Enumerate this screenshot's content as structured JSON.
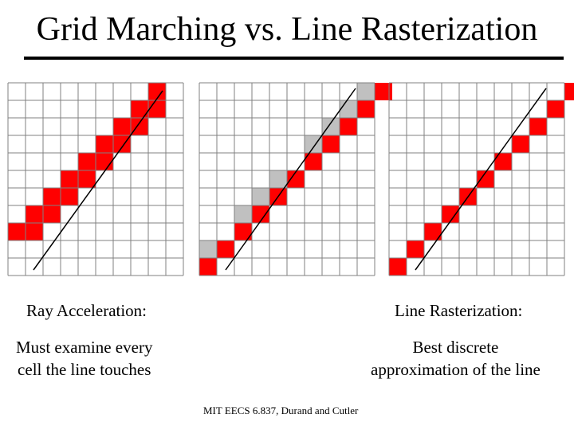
{
  "title": "Grid Marching vs. Line Rasterization",
  "panels": [
    {
      "name": "ray-acceleration-grid",
      "touched": [
        [
          0,
          8
        ],
        [
          1,
          8
        ],
        [
          1,
          7
        ],
        [
          2,
          7
        ],
        [
          2,
          6
        ],
        [
          3,
          6
        ],
        [
          3,
          5
        ],
        [
          4,
          5
        ],
        [
          4,
          4
        ],
        [
          5,
          4
        ],
        [
          5,
          3
        ],
        [
          6,
          3
        ],
        [
          6,
          2
        ],
        [
          7,
          2
        ],
        [
          7,
          1
        ],
        [
          8,
          1
        ],
        [
          8,
          0
        ]
      ],
      "gray": []
    },
    {
      "name": "comparison-grid",
      "touched": [
        [
          0,
          10
        ],
        [
          1,
          9
        ],
        [
          2,
          8
        ],
        [
          3,
          7
        ],
        [
          4,
          6
        ],
        [
          5,
          5
        ],
        [
          6,
          4
        ],
        [
          7,
          3
        ],
        [
          8,
          2
        ],
        [
          9,
          1
        ],
        [
          10,
          0
        ]
      ],
      "gray": [
        [
          0,
          9
        ],
        [
          2,
          7
        ],
        [
          3,
          6
        ],
        [
          4,
          5
        ],
        [
          6,
          3
        ],
        [
          7,
          2
        ],
        [
          8,
          1
        ],
        [
          9,
          0
        ]
      ]
    },
    {
      "name": "line-rasterization-grid",
      "touched": [
        [
          0,
          10
        ],
        [
          1,
          9
        ],
        [
          2,
          8
        ],
        [
          3,
          7
        ],
        [
          4,
          6
        ],
        [
          5,
          5
        ],
        [
          6,
          4
        ],
        [
          7,
          3
        ],
        [
          8,
          2
        ],
        [
          9,
          1
        ],
        [
          10,
          0
        ]
      ],
      "gray": []
    }
  ],
  "labels": {
    "left": "Ray Acceleration:",
    "right": "Line Rasterization:",
    "left_desc_1": "Must examine every",
    "left_desc_2": "cell the line touches",
    "right_desc_1": "Best discrete",
    "right_desc_2": "approximation of the line"
  },
  "footer": "MIT EECS 6.837, Durand and Cutler",
  "colors": {
    "red": "#ff0000",
    "gray": "#c0c0c0",
    "grid": "#808080",
    "line": "#000000"
  }
}
